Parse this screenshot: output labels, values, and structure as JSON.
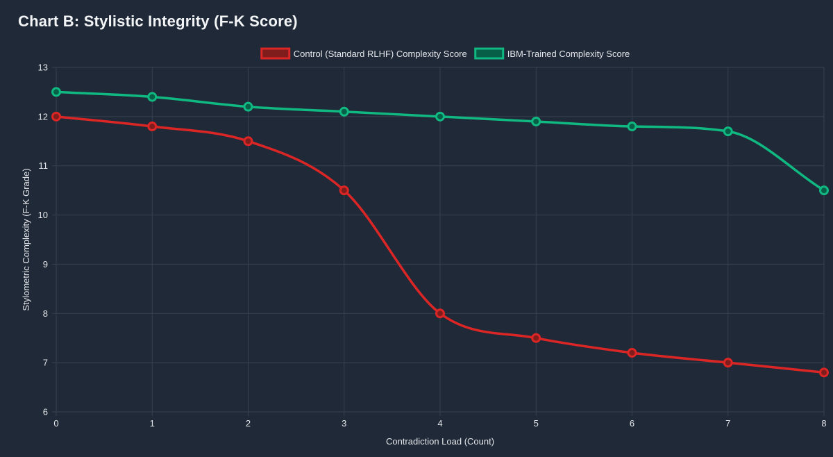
{
  "chart_data": {
    "type": "line",
    "title": "Chart B: Stylistic Integrity (F-K Score)",
    "xlabel": "Contradiction Load (Count)",
    "ylabel": "Stylometric Complexity (F-K Grade)",
    "x": [
      0,
      1,
      2,
      3,
      4,
      5,
      6,
      7,
      8
    ],
    "xlim": [
      0,
      8
    ],
    "ylim": [
      6,
      13
    ],
    "yticks": [
      6,
      7,
      8,
      9,
      10,
      11,
      12,
      13
    ],
    "grid": true,
    "legend_position": "top-center",
    "series": [
      {
        "name": "Control (Standard RLHF) Complexity Score",
        "color": "#dc2626",
        "fill": "#7f1d1d",
        "values": [
          12.0,
          11.8,
          11.5,
          10.5,
          8.0,
          7.5,
          7.2,
          7.0,
          6.8
        ]
      },
      {
        "name": "IBM-Trained Complexity Score",
        "color": "#10b981",
        "fill": "#065f46",
        "values": [
          12.5,
          12.4,
          12.2,
          12.1,
          12.0,
          11.9,
          11.8,
          11.7,
          10.5
        ]
      }
    ]
  }
}
